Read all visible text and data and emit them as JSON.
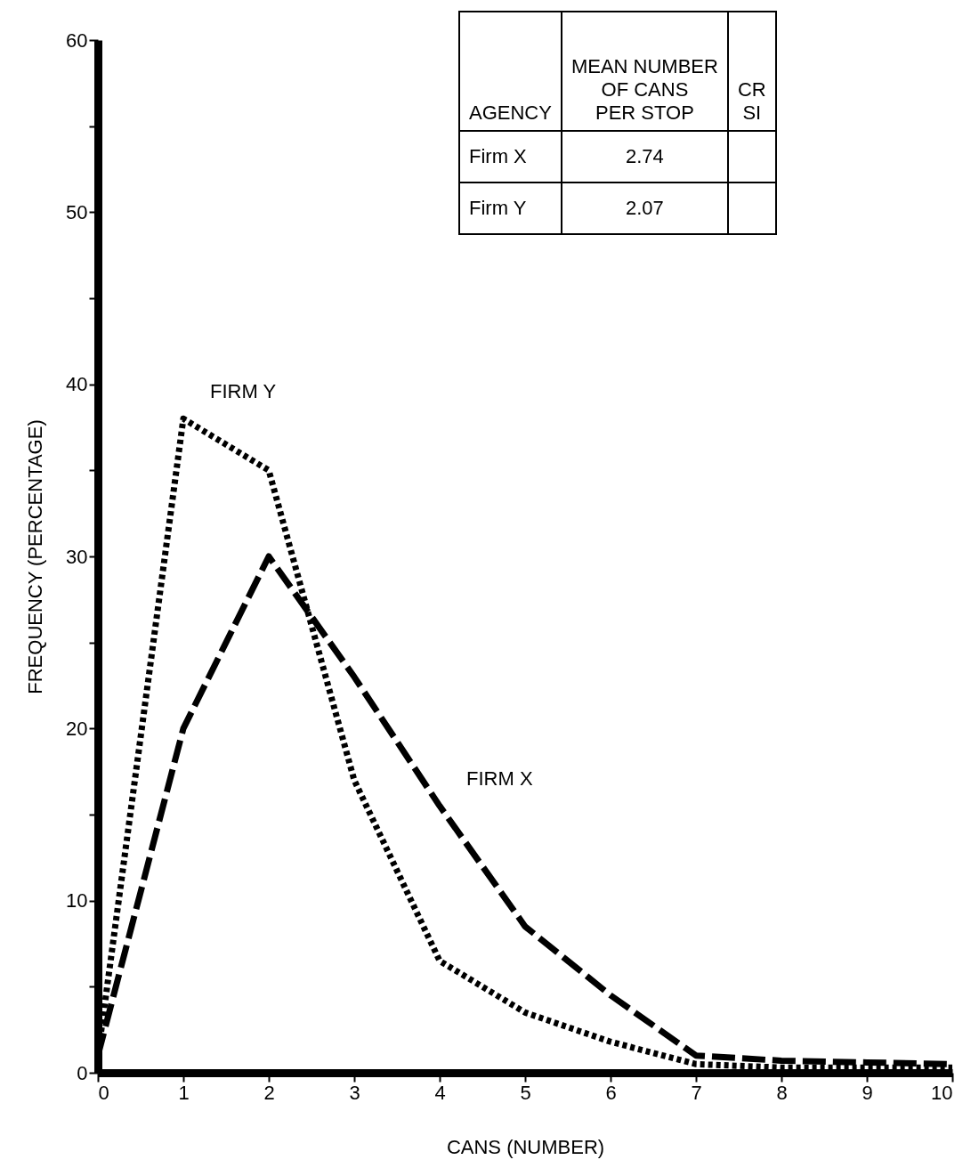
{
  "chart_data": {
    "type": "line",
    "xlabel": "CANS  (NUMBER)",
    "ylabel": "FREQUENCY   (PERCENTAGE)",
    "x": [
      0,
      1,
      2,
      3,
      4,
      5,
      6,
      7,
      8,
      9,
      10
    ],
    "series": [
      {
        "name": "FIRM X",
        "color": "#000000",
        "line_style": "dashed",
        "values": [
          1,
          20,
          30,
          23,
          15.5,
          8.5,
          4.5,
          1,
          0.7,
          0.6,
          0.5
        ]
      },
      {
        "name": "FIRM Y",
        "color": "#000000",
        "line_style": "dotted",
        "values": [
          1,
          38,
          35,
          17,
          6.5,
          3.5,
          1.8,
          0.5,
          0.3,
          0.3,
          0.3
        ]
      }
    ],
    "xlim": [
      0,
      10
    ],
    "xticks": [
      0,
      1,
      2,
      3,
      4,
      5,
      6,
      7,
      8,
      9,
      10
    ],
    "ylim": [
      0,
      60
    ],
    "yticks": [
      0,
      {
        "value": 5,
        "label": null
      },
      10,
      {
        "value": 15,
        "label": null
      },
      20,
      {
        "value": 25,
        "label": null
      },
      30,
      {
        "value": 35,
        "label": null
      },
      40,
      {
        "value": 45,
        "label": null
      },
      50,
      {
        "value": 55,
        "label": null
      },
      60
    ],
    "grid": false,
    "marker": "none",
    "annotations": [
      "AGENCY",
      "MEAN NUMBER\nOF CANS\nPER STOP",
      "CR\nSI",
      "Firm X",
      "2.74",
      "Firm Y",
      "2.07"
    ]
  }
}
